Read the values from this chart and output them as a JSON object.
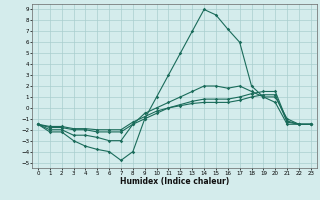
{
  "title": "",
  "xlabel": "Humidex (Indice chaleur)",
  "xlim": [
    -0.5,
    23.5
  ],
  "ylim": [
    -5.5,
    9.5
  ],
  "xticks": [
    0,
    1,
    2,
    3,
    4,
    5,
    6,
    7,
    8,
    9,
    10,
    11,
    12,
    13,
    14,
    15,
    16,
    17,
    18,
    19,
    20,
    21,
    22,
    23
  ],
  "yticks": [
    -5,
    -4,
    -3,
    -2,
    -1,
    0,
    1,
    2,
    3,
    4,
    5,
    6,
    7,
    8,
    9
  ],
  "bg_color": "#d4ecec",
  "grid_color": "#aacece",
  "line_color": "#1a6b5a",
  "curve1_x": [
    0,
    1,
    2,
    3,
    4,
    5,
    6,
    7,
    8,
    9,
    10,
    11,
    12,
    13,
    14,
    15,
    16,
    17,
    18,
    19,
    20,
    21,
    22,
    23
  ],
  "curve1_y": [
    -1.5,
    -2.2,
    -2.2,
    -3.0,
    -3.5,
    -3.8,
    -4.0,
    -4.8,
    -4.0,
    -1.0,
    1.0,
    3.0,
    5.0,
    7.0,
    9.0,
    8.5,
    7.2,
    6.0,
    2.0,
    1.0,
    0.5,
    -1.5,
    -1.5,
    -1.5
  ],
  "curve2_x": [
    0,
    1,
    2,
    3,
    4,
    5,
    6,
    7,
    8,
    9,
    10,
    11,
    12,
    13,
    14,
    15,
    16,
    17,
    18,
    19,
    20,
    21,
    22,
    23
  ],
  "curve2_y": [
    -1.5,
    -2.0,
    -2.0,
    -2.5,
    -2.5,
    -2.7,
    -3.0,
    -3.0,
    -1.5,
    -0.5,
    0.0,
    0.5,
    1.0,
    1.5,
    2.0,
    2.0,
    1.8,
    2.0,
    1.5,
    1.0,
    1.0,
    -1.0,
    -1.5,
    -1.5
  ],
  "curve3_x": [
    0,
    1,
    2,
    3,
    4,
    5,
    6,
    7,
    8,
    9,
    10,
    11,
    12,
    13,
    14,
    15,
    16,
    17,
    18,
    19,
    20,
    21,
    22,
    23
  ],
  "curve3_y": [
    -1.5,
    -1.8,
    -1.8,
    -2.0,
    -2.0,
    -2.2,
    -2.2,
    -2.2,
    -1.5,
    -1.0,
    -0.5,
    0.0,
    0.3,
    0.6,
    0.8,
    0.8,
    0.8,
    1.0,
    1.3,
    1.5,
    1.5,
    -1.2,
    -1.5,
    -1.5
  ],
  "curve4_x": [
    0,
    1,
    2,
    3,
    4,
    5,
    6,
    7,
    8,
    9,
    10,
    11,
    12,
    13,
    14,
    15,
    16,
    17,
    18,
    19,
    20,
    21,
    22,
    23
  ],
  "curve4_y": [
    -1.5,
    -1.7,
    -1.7,
    -1.9,
    -1.9,
    -2.0,
    -2.0,
    -2.0,
    -1.3,
    -0.8,
    -0.3,
    0.0,
    0.2,
    0.4,
    0.5,
    0.5,
    0.5,
    0.7,
    1.0,
    1.2,
    1.2,
    -1.3,
    -1.5,
    -1.5
  ]
}
